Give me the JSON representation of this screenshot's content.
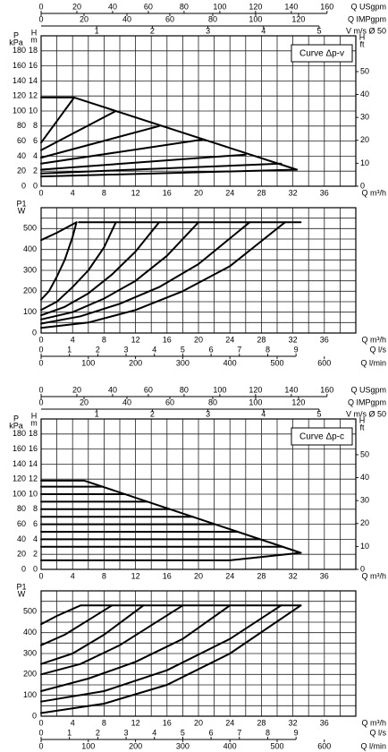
{
  "chart_data": [
    {
      "type": "line",
      "annotation": "Curve Δp-v",
      "top_axes": [
        {
          "label": "Q USgpm",
          "xlim": [
            0,
            176.1
          ],
          "xticks": [
            0,
            20,
            40,
            60,
            80,
            100,
            120,
            140,
            160
          ]
        },
        {
          "label": "Q IMPgpm",
          "xlim": [
            0,
            146.7
          ],
          "xticks": [
            0,
            20,
            40,
            60,
            80,
            100,
            120
          ]
        },
        {
          "label": "V m/s Ø 50",
          "xlim": [
            0,
            5.66
          ],
          "xticks": [
            1,
            2,
            3,
            4,
            5
          ]
        }
      ],
      "x_axis": {
        "label": "Q m³/h",
        "xlim": [
          0,
          40
        ],
        "xticks": [
          0,
          4,
          8,
          12,
          16,
          20,
          24,
          28,
          32,
          36
        ]
      },
      "bottom_axes": [
        {
          "label": "Q l/s",
          "xlim": [
            0,
            11.11
          ],
          "xticks": [
            0,
            1,
            2,
            3,
            4,
            5,
            6,
            7,
            8,
            9
          ]
        },
        {
          "label": "Q l/min",
          "xlim": [
            0,
            666.7
          ],
          "xticks": [
            0,
            100,
            200,
            300,
            400,
            500,
            600
          ]
        }
      ],
      "head": {
        "label": [
          "H",
          "m"
        ],
        "ylim": [
          0,
          20
        ],
        "yticks": [
          0,
          2,
          4,
          6,
          8,
          10,
          12,
          14,
          16,
          18
        ],
        "kpa_axis": {
          "label": [
            "P",
            "kPa"
          ],
          "ylim": [
            0,
            200
          ],
          "yticks": [
            0,
            20,
            40,
            60,
            80,
            100,
            120,
            140,
            160,
            180
          ]
        },
        "ft_axis": {
          "label": [
            "H",
            "ft"
          ],
          "ylim": [
            0,
            65.6
          ],
          "yticks": [
            0,
            10,
            20,
            30,
            40,
            50
          ]
        },
        "series": [
          {
            "color": "#000000",
            "x": [
              0,
              4.2,
              32.5
            ],
            "values": [
              11.8,
              11.8,
              2.2
            ]
          },
          {
            "color": "#000000",
            "x": [
              0,
              4.2
            ],
            "values": [
              5.8,
              11.8
            ]
          },
          {
            "color": "#000000",
            "x": [
              0,
              9.5
            ],
            "values": [
              4.8,
              10
            ]
          },
          {
            "color": "#000000",
            "x": [
              0,
              15
            ],
            "values": [
              3.8,
              8
            ]
          },
          {
            "color": "#000000",
            "x": [
              0,
              20.5
            ],
            "values": [
              3,
              6.2
            ]
          },
          {
            "color": "#000000",
            "x": [
              0,
              26
            ],
            "values": [
              2.2,
              4.2
            ]
          },
          {
            "color": "#000000",
            "x": [
              0,
              30.5
            ],
            "values": [
              1.7,
              3
            ]
          },
          {
            "color": "#000000",
            "x": [
              0,
              32.5
            ],
            "values": [
              1.3,
              2.2
            ]
          }
        ]
      },
      "power": {
        "label": [
          "P1",
          "W"
        ],
        "ylim": [
          0,
          600
        ],
        "yticks": [
          0,
          100,
          200,
          300,
          400,
          500
        ],
        "series": [
          {
            "color": "#000000",
            "x": [
              4.8,
              33
            ],
            "values": [
              530,
              530
            ]
          },
          {
            "color": "#000000",
            "x": [
              0,
              2,
              4.5
            ],
            "values": [
              445,
              480,
              530
            ]
          },
          {
            "color": "#000000",
            "x": [
              0,
              1,
              2,
              3,
              4,
              4.5
            ],
            "values": [
              160,
              200,
              270,
              350,
              460,
              530
            ]
          },
          {
            "color": "#000000",
            "x": [
              0,
              2,
              4,
              6,
              8,
              9.5
            ],
            "values": [
              110,
              150,
              220,
              300,
              410,
              530
            ]
          },
          {
            "color": "#000000",
            "x": [
              0,
              3,
              6,
              9,
              12,
              15
            ],
            "values": [
              85,
              125,
              190,
              280,
              390,
              530
            ]
          },
          {
            "color": "#000000",
            "x": [
              0,
              4,
              8,
              12,
              16,
              20
            ],
            "values": [
              65,
              100,
              165,
              250,
              370,
              530
            ]
          },
          {
            "color": "#000000",
            "x": [
              0,
              5,
              10,
              15,
              20,
              26.5
            ],
            "values": [
              45,
              80,
              140,
              220,
              330,
              530
            ]
          },
          {
            "color": "#000000",
            "x": [
              0,
              6,
              12,
              18,
              24,
              31
            ],
            "values": [
              25,
              50,
              110,
              200,
              320,
              530
            ]
          }
        ]
      }
    },
    {
      "type": "line",
      "annotation": "Curve Δp-c",
      "top_axes": [
        {
          "label": "Q USgpm",
          "xlim": [
            0,
            176.1
          ],
          "xticks": [
            0,
            20,
            40,
            60,
            80,
            100,
            120,
            140,
            160
          ]
        },
        {
          "label": "Q IMPgpm",
          "xlim": [
            0,
            146.7
          ],
          "xticks": [
            0,
            20,
            40,
            60,
            80,
            100,
            120
          ]
        },
        {
          "label": "V m/s Ø 50",
          "xlim": [
            0,
            5.66
          ],
          "xticks": [
            1,
            2,
            3,
            4,
            5
          ]
        }
      ],
      "x_axis": {
        "label": "Q m³/h",
        "xlim": [
          0,
          40
        ],
        "xticks": [
          0,
          4,
          8,
          12,
          16,
          20,
          24,
          28,
          32,
          36
        ]
      },
      "bottom_axes": [
        {
          "label": "Q l/s",
          "xlim": [
            0,
            11.11
          ],
          "xticks": [
            0,
            1,
            2,
            3,
            4,
            5,
            6,
            7,
            8,
            9
          ]
        },
        {
          "label": "Q l/min",
          "xlim": [
            0,
            666.7
          ],
          "xticks": [
            0,
            100,
            200,
            300,
            400,
            500,
            600
          ]
        }
      ],
      "head": {
        "label": [
          "H",
          "m"
        ],
        "ylim": [
          0,
          20
        ],
        "yticks": [
          0,
          2,
          4,
          6,
          8,
          10,
          12,
          14,
          16,
          18
        ],
        "kpa_axis": {
          "label": [
            "P",
            "kPa"
          ],
          "ylim": [
            0,
            200
          ],
          "yticks": [
            0,
            20,
            40,
            60,
            80,
            100,
            120,
            140,
            160,
            180
          ]
        },
        "ft_axis": {
          "label": [
            "H",
            "ft"
          ],
          "ylim": [
            0,
            65.6
          ],
          "yticks": [
            0,
            10,
            20,
            30,
            40,
            50
          ]
        },
        "series": [
          {
            "color": "#000000",
            "x": [
              0,
              5.5,
              33
            ],
            "values": [
              11.8,
              11.8,
              2.2
            ]
          },
          {
            "color": "#000000",
            "x": [
              0,
              7.8
            ],
            "values": [
              11,
              11
            ]
          },
          {
            "color": "#000000",
            "x": [
              0,
              10.7
            ],
            "values": [
              10,
              10
            ]
          },
          {
            "color": "#000000",
            "x": [
              0,
              13.5
            ],
            "values": [
              9,
              9
            ]
          },
          {
            "color": "#000000",
            "x": [
              0,
              16.4
            ],
            "values": [
              8,
              8
            ]
          },
          {
            "color": "#000000",
            "x": [
              0,
              19.3
            ],
            "values": [
              7,
              7
            ]
          },
          {
            "color": "#000000",
            "x": [
              0,
              22.1
            ],
            "values": [
              6,
              6
            ]
          },
          {
            "color": "#000000",
            "x": [
              0,
              25
            ],
            "values": [
              5,
              5
            ]
          },
          {
            "color": "#000000",
            "x": [
              0,
              27.8
            ],
            "values": [
              4,
              4
            ]
          },
          {
            "color": "#000000",
            "x": [
              0,
              30.7
            ],
            "values": [
              3,
              3
            ]
          },
          {
            "color": "#000000",
            "x": [
              0,
              24,
              33
            ],
            "values": [
              1.2,
              1.2,
              2.2
            ]
          }
        ]
      },
      "power": {
        "label": [
          "P1",
          "W"
        ],
        "ylim": [
          0,
          600
        ],
        "yticks": [
          0,
          100,
          200,
          300,
          400,
          500
        ],
        "series": [
          {
            "color": "#000000",
            "x": [
              5,
              33
            ],
            "values": [
              530,
              530
            ]
          },
          {
            "color": "#000000",
            "x": [
              0,
              2,
              5
            ],
            "values": [
              440,
              480,
              530
            ]
          },
          {
            "color": "#000000",
            "x": [
              0,
              3,
              6,
              9
            ],
            "values": [
              340,
              390,
              460,
              530
            ]
          },
          {
            "color": "#000000",
            "x": [
              0,
              4,
              8,
              13
            ],
            "values": [
              250,
              300,
              390,
              530
            ]
          },
          {
            "color": "#000000",
            "x": [
              0,
              5,
              10,
              18
            ],
            "values": [
              200,
              250,
              340,
              530
            ]
          },
          {
            "color": "#000000",
            "x": [
              0,
              6,
              12,
              18,
              24
            ],
            "values": [
              120,
              180,
              260,
              370,
              530
            ]
          },
          {
            "color": "#000000",
            "x": [
              0,
              8,
              16,
              24,
              30.5
            ],
            "values": [
              70,
              120,
              220,
              370,
              530
            ]
          },
          {
            "color": "#000000",
            "x": [
              0,
              8,
              16,
              24,
              33
            ],
            "values": [
              15,
              60,
              150,
              300,
              530
            ]
          }
        ]
      }
    }
  ]
}
